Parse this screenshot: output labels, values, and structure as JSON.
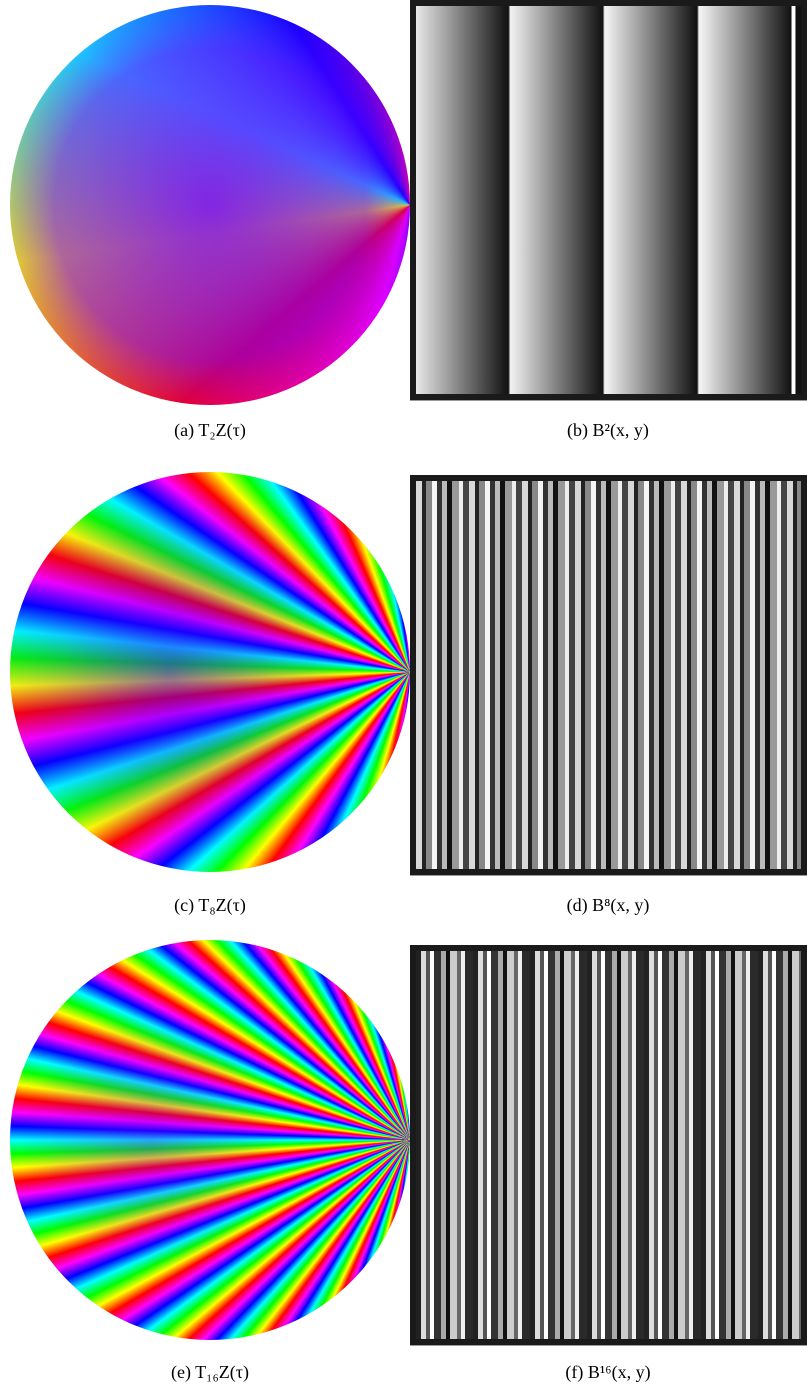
{
  "figure": {
    "panels": [
      {
        "caption": "(a) T₂Z(τ)"
      },
      {
        "caption": "(b) B²(x, y)"
      },
      {
        "caption": "(c) T₈Z(τ)"
      },
      {
        "caption": "(d) B⁸(x, y)"
      },
      {
        "caption": "(e) T₁₆Z(τ)"
      },
      {
        "caption": "(f) B¹⁶(x, y)"
      }
    ]
  }
}
